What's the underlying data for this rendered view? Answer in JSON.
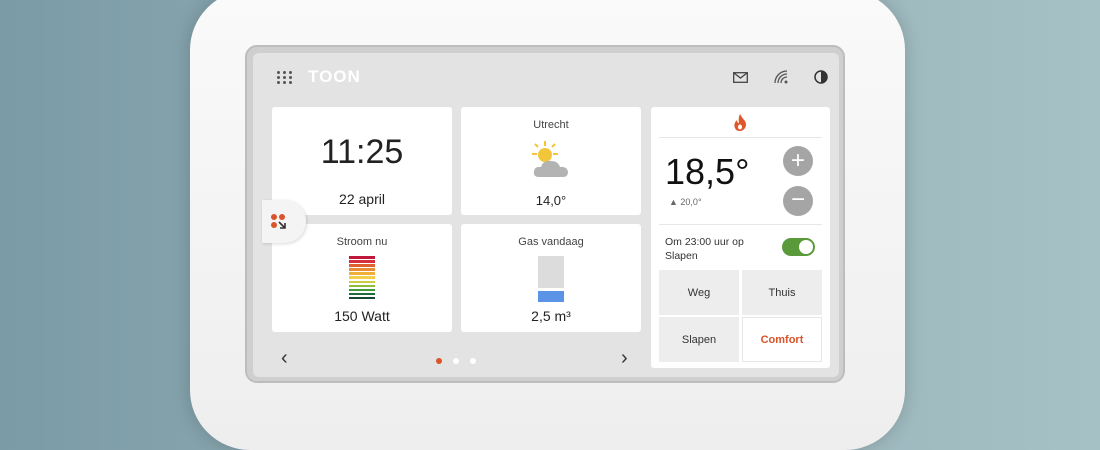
{
  "header": {
    "logo": "TOON",
    "icons": [
      "apps-grid-icon",
      "mail-icon",
      "wifi-icon",
      "contrast-icon"
    ]
  },
  "clock": {
    "time": "11:25",
    "date": "22 april"
  },
  "weather": {
    "city": "Utrecht",
    "temperature": "14,0°",
    "icon": "partly-sunny-icon"
  },
  "power": {
    "label": "Stroom nu",
    "value": "150 Watt",
    "bar_colors": [
      "#c0183a",
      "#d42f3a",
      "#e0612e",
      "#e98b32",
      "#efb03a",
      "#f2cf4a",
      "#c9cf40",
      "#8dbb3a",
      "#3f9a3a",
      "#1f6b3a",
      "#174a33"
    ]
  },
  "gas": {
    "label": "Gas vandaag",
    "value": "2,5 m³",
    "fill_fraction": 0.3
  },
  "thermostat": {
    "current": "18,5°",
    "setpoint": "20,0°",
    "heating_icon": "flame-icon",
    "plus": "+",
    "minus": "−",
    "schedule_text": "Om 23:00 uur op Slapen",
    "schedule_enabled": true,
    "modes": [
      {
        "label": "Weg",
        "active": false
      },
      {
        "label": "Thuis",
        "active": false
      },
      {
        "label": "Slapen",
        "active": false
      },
      {
        "label": "Comfort",
        "active": true
      }
    ]
  },
  "nav": {
    "prev": "‹",
    "next": "›",
    "pages": 3,
    "current_page": 1
  },
  "colors": {
    "accent": "#d9532b",
    "toggle": "#5a9a3a",
    "gas_blue": "#5b93e6"
  }
}
